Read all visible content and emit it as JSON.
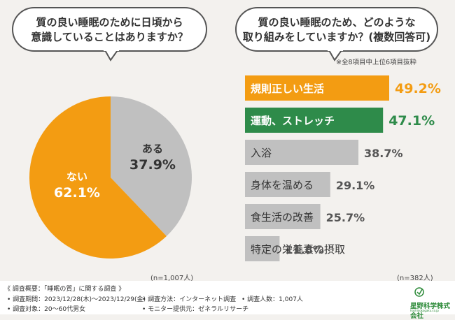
{
  "left_question": {
    "line1": "質の良い睡眠のために日頃から",
    "line2": "意識していることはありますか？"
  },
  "right_question": {
    "line1": "質の良い睡眠のため、どのような",
    "line2": "取り組みをしていますか？(複数回答可)"
  },
  "right_note": "※全8項目中上位6項目抜粋",
  "chart_data": [
    {
      "type": "pie",
      "slices": [
        {
          "label": "ある",
          "value": 37.9,
          "value_text": "37.9%",
          "color": "#c0c0c0"
        },
        {
          "label": "ない",
          "value": 62.1,
          "value_text": "62.1%",
          "color": "#f39c12"
        }
      ],
      "sample_note": "(n=1,007人)"
    },
    {
      "type": "bar",
      "orientation": "horizontal",
      "categories": [
        "規則正しい生活",
        "運動、ストレッチ",
        "入浴",
        "身体を温める",
        "食生活の改善",
        "特定の栄養素の摂取"
      ],
      "values": [
        49.2,
        47.1,
        38.7,
        29.1,
        25.7,
        11.8
      ],
      "value_texts": [
        "49.2%",
        "47.1%",
        "38.7%",
        "29.1%",
        "25.7%",
        "11.8%"
      ],
      "colors": [
        "#f39c12",
        "#2e8b4a",
        "#c0c0c0",
        "#c0c0c0",
        "#c0c0c0",
        "#c0c0c0"
      ],
      "value_colors": [
        "#f39c12",
        "#2e8b4a",
        "#555555",
        "#555555",
        "#555555",
        "#555555"
      ],
      "xlim": [
        0,
        49.2
      ],
      "sample_note": "(n=382人)"
    }
  ],
  "footer": {
    "heading": "《 調査概要：「睡眠の質」に関する調査 》",
    "period": "• 調査期間：2023/12/28(木)～2023/12/29(金)",
    "method": "• 調査方法：インターネット調査",
    "count": "• 調査人数：1,007人",
    "target": "• 調査対象：20～60代男女",
    "provider": "• モニター提供元：ゼネラルリサーチ"
  },
  "logo": {
    "name": "星野科学株式会社",
    "sub": "hoshinokagaku.co.jp"
  },
  "colors": {
    "orange": "#f39c12",
    "green": "#2e8b4a",
    "gray": "#c0c0c0",
    "background": "#f3f1ee"
  }
}
